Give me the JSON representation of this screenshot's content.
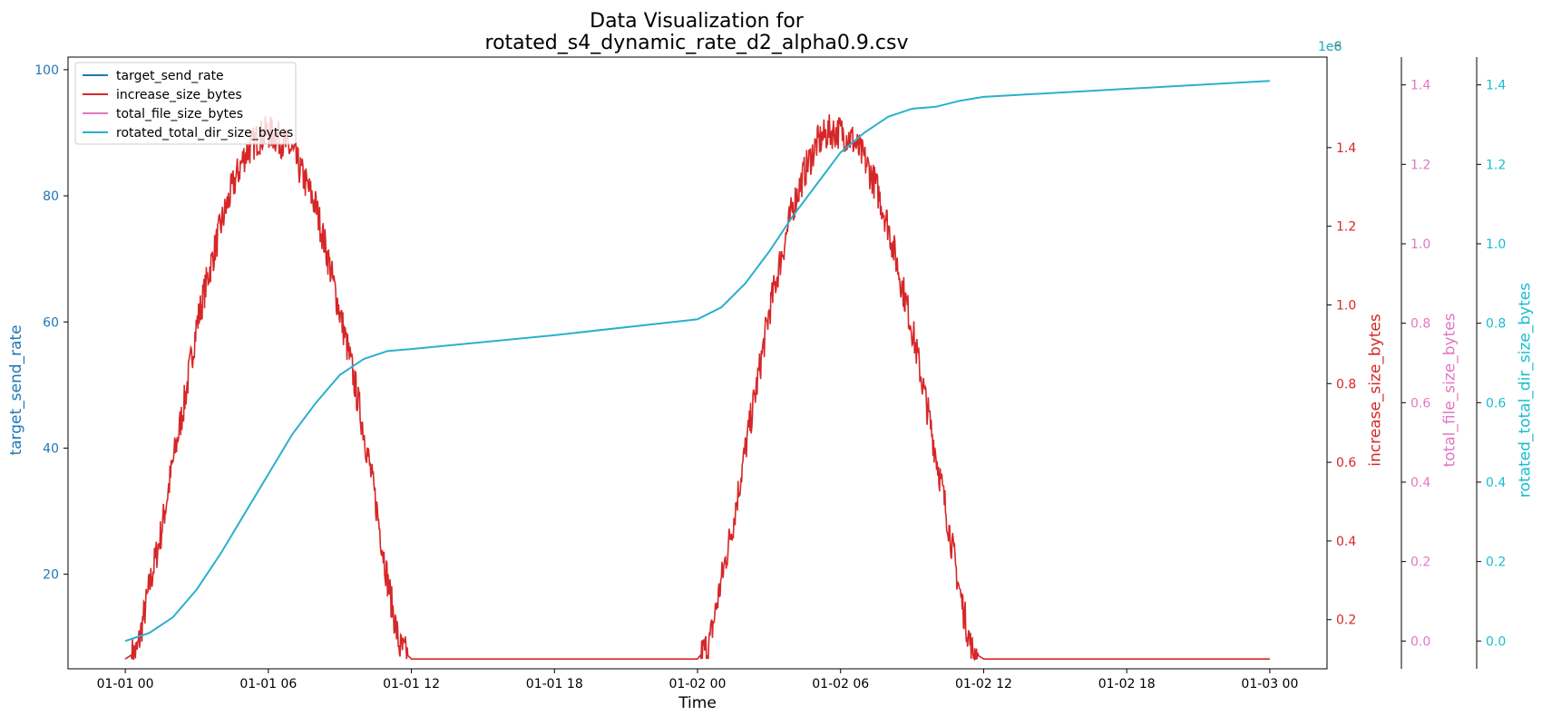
{
  "chart_data": {
    "type": "line",
    "title_line1": "Data Visualization for",
    "title_line2": "rotated_s4_dynamic_rate_d2_alpha0.9.csv",
    "xlabel": "Time",
    "x_ticks": [
      "01-01 00",
      "01-01 06",
      "01-01 12",
      "01-01 18",
      "01-02 00",
      "01-02 06",
      "01-02 12",
      "01-02 18",
      "01-03 00"
    ],
    "x_range_hours": [
      -2.4,
      50.4
    ],
    "axes": [
      {
        "name": "target_send_rate",
        "label": "target_send_rate",
        "color": "#1f77b4",
        "side": "left",
        "ylim": [
          5,
          102
        ],
        "ticks": [
          20,
          40,
          60,
          80,
          100
        ],
        "tick_labels": [
          "20",
          "40",
          "60",
          "80",
          "100"
        ],
        "offset_text": ""
      },
      {
        "name": "increase_size_bytes",
        "label": "increase_size_bytes",
        "color": "#d62728",
        "side": "right",
        "ylim": [
          0.075,
          1.63
        ],
        "ticks": [
          0.2,
          0.4,
          0.6,
          0.8,
          1.0,
          1.2,
          1.4
        ],
        "tick_labels": [
          "0.2",
          "0.4",
          "0.6",
          "0.8",
          "1.0",
          "1.2",
          "1.4"
        ],
        "offset_text": "1e6"
      },
      {
        "name": "total_file_size_bytes",
        "label": "total_file_size_bytes",
        "color": "#e377c2",
        "side": "right",
        "ylim": [
          -0.07,
          1.47
        ],
        "ticks": [
          0.0,
          0.2,
          0.4,
          0.6,
          0.8,
          1.0,
          1.2,
          1.4
        ],
        "tick_labels": [
          "0.0",
          "0.2",
          "0.4",
          "0.6",
          "0.8",
          "1.0",
          "1.2",
          "1.4"
        ],
        "offset_text": ""
      },
      {
        "name": "rotated_total_dir_size_bytes",
        "label": "rotated_total_dir_size_bytes",
        "color": "#17becf",
        "side": "right",
        "ylim": [
          -0.07,
          1.47
        ],
        "ticks": [
          0.0,
          0.2,
          0.4,
          0.6,
          0.8,
          1.0,
          1.2,
          1.4
        ],
        "tick_labels": [
          "0.0",
          "0.2",
          "0.4",
          "0.6",
          "0.8",
          "1.0",
          "1.2",
          "1.4"
        ],
        "offset_text": "1e8"
      }
    ],
    "legend": {
      "placement": "top-left",
      "entries": [
        {
          "label": "target_send_rate",
          "color": "#1f77b4"
        },
        {
          "label": "increase_size_bytes",
          "color": "#d62728"
        },
        {
          "label": "total_file_size_bytes",
          "color": "#e377c2"
        },
        {
          "label": "rotated_total_dir_size_bytes",
          "color": "#2ab0cc"
        }
      ]
    },
    "series": [
      {
        "name": "increase_size_bytes",
        "axis": "increase_size_bytes",
        "color": "#d62728",
        "unit": "1e6 bytes",
        "x_hours": [
          0,
          0.5,
          1,
          1.5,
          2,
          2.5,
          3,
          3.5,
          4,
          4.5,
          5,
          5.5,
          6,
          6.5,
          7,
          7.5,
          8,
          8.5,
          9,
          9.5,
          10,
          10.5,
          11,
          11.5,
          12,
          18,
          24,
          24.5,
          25,
          25.5,
          26,
          26.5,
          27,
          27.5,
          28,
          28.5,
          29,
          29.5,
          30,
          30.5,
          31,
          31.5,
          32,
          32.5,
          33,
          33.5,
          34,
          34.5,
          35,
          35.5,
          36,
          42,
          48
        ],
        "values": [
          0.1,
          0.12,
          0.28,
          0.42,
          0.6,
          0.76,
          0.95,
          1.08,
          1.2,
          1.3,
          1.38,
          1.42,
          1.44,
          1.42,
          1.39,
          1.32,
          1.25,
          1.12,
          0.98,
          0.84,
          0.68,
          0.5,
          0.3,
          0.13,
          0.1,
          0.1,
          0.1,
          0.14,
          0.3,
          0.45,
          0.63,
          0.8,
          0.98,
          1.12,
          1.25,
          1.34,
          1.41,
          1.44,
          1.44,
          1.42,
          1.37,
          1.3,
          1.2,
          1.07,
          0.94,
          0.78,
          0.62,
          0.45,
          0.27,
          0.12,
          0.1,
          0.1,
          0.1
        ]
      },
      {
        "name": "rotated_total_dir_size_bytes",
        "axis": "rotated_total_dir_size_bytes",
        "color": "#2ab0cc",
        "unit": "1e8 bytes",
        "x_hours": [
          0,
          1,
          2,
          3,
          4,
          5,
          6,
          7,
          8,
          9,
          10,
          11,
          12,
          18,
          24,
          25,
          26,
          27,
          28,
          29,
          30,
          31,
          32,
          33,
          34,
          35,
          36,
          42,
          48
        ],
        "values": [
          0.0,
          0.02,
          0.06,
          0.13,
          0.22,
          0.32,
          0.42,
          0.52,
          0.6,
          0.67,
          0.71,
          0.73,
          0.735,
          0.77,
          0.81,
          0.84,
          0.9,
          0.98,
          1.07,
          1.15,
          1.23,
          1.28,
          1.32,
          1.34,
          1.345,
          1.36,
          1.37,
          1.39,
          1.41
        ]
      },
      {
        "name": "target_send_rate",
        "axis": "target_send_rate",
        "color": "#1f77b4",
        "x_hours": [],
        "values": []
      },
      {
        "name": "total_file_size_bytes",
        "axis": "total_file_size_bytes",
        "color": "#e377c2",
        "x_hours": [],
        "values": []
      }
    ]
  }
}
